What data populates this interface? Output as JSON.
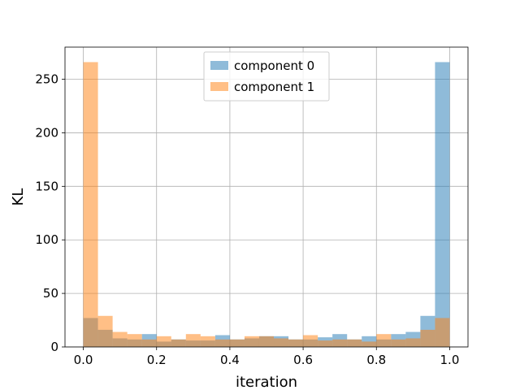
{
  "chart_data": {
    "type": "bar",
    "xlabel": "iteration",
    "ylabel": "KL",
    "xlim": [
      -0.05,
      1.05
    ],
    "ylim": [
      0,
      280
    ],
    "xticks": [
      0.0,
      0.2,
      0.4,
      0.6,
      0.8,
      1.0
    ],
    "xtick_labels": [
      "0.0",
      "0.2",
      "0.4",
      "0.6",
      "0.8",
      "1.0"
    ],
    "yticks": [
      0,
      50,
      100,
      150,
      200,
      250
    ],
    "ytick_labels": [
      "0",
      "50",
      "100",
      "150",
      "200",
      "250"
    ],
    "grid": true,
    "legend_position": "top-center",
    "bin_edges": [
      0.0,
      0.04,
      0.08,
      0.12,
      0.16,
      0.2,
      0.24,
      0.28,
      0.32,
      0.36,
      0.4,
      0.44,
      0.48,
      0.52,
      0.56,
      0.6,
      0.64,
      0.68,
      0.72,
      0.76,
      0.8,
      0.84,
      0.88,
      0.92,
      0.96,
      1.0
    ],
    "series": [
      {
        "name": "component 0",
        "color": "#1f77b4",
        "alpha": 0.5,
        "values": [
          27,
          16,
          8,
          7,
          12,
          5,
          7,
          6,
          6,
          11,
          7,
          8,
          10,
          10,
          7,
          7,
          9,
          12,
          7,
          10,
          7,
          12,
          14,
          29,
          266
        ]
      },
      {
        "name": "component 1",
        "color": "#ff7f0e",
        "alpha": 0.5,
        "values": [
          266,
          29,
          14,
          12,
          7,
          10,
          7,
          12,
          10,
          7,
          7,
          10,
          10,
          8,
          7,
          11,
          6,
          7,
          7,
          5,
          12,
          7,
          8,
          16,
          27
        ]
      }
    ]
  }
}
